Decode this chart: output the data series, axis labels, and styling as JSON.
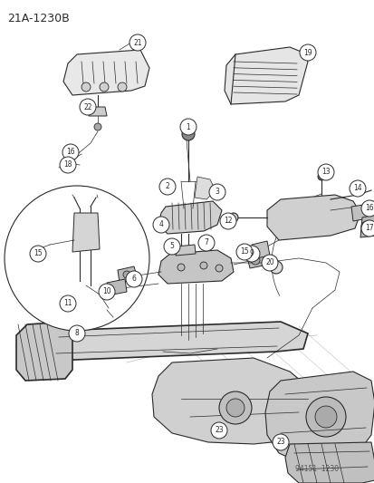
{
  "title": "21A-1230B",
  "footer": "94151  1230",
  "bg_color": "#ffffff",
  "line_color": "#2a2a2a",
  "fig_width": 4.14,
  "fig_height": 5.33,
  "dpi": 100
}
